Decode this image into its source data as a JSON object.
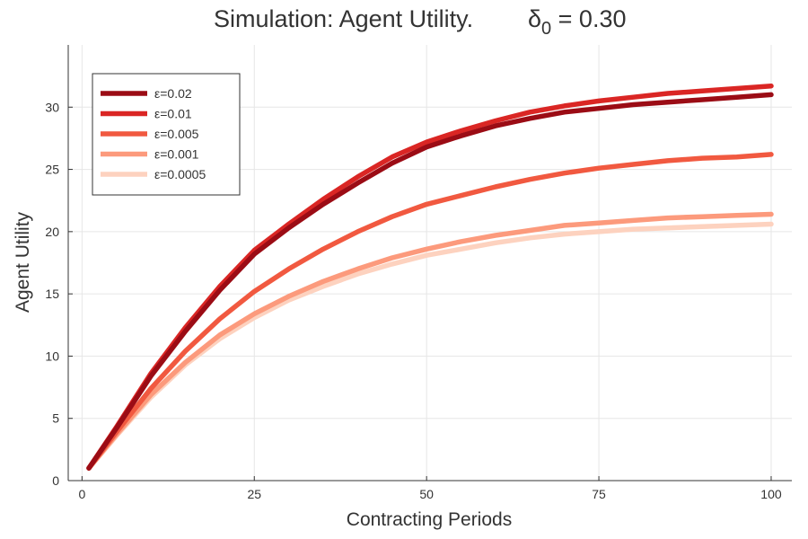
{
  "chart_data": {
    "type": "line",
    "title": "Simulation: Agent Utility.",
    "title_math": {
      "symbol": "δ",
      "subscript": "0",
      "rest": " = 0.30"
    },
    "xlabel": "Contracting Periods",
    "ylabel": "Agent Utility",
    "xlim": [
      -2,
      103
    ],
    "ylim": [
      0,
      35
    ],
    "xticks": [
      0,
      25,
      50,
      75,
      100
    ],
    "yticks": [
      0,
      5,
      10,
      15,
      20,
      25,
      30
    ],
    "grid": true,
    "legend_position": "top-left",
    "x": [
      1,
      5,
      10,
      15,
      20,
      25,
      30,
      35,
      40,
      45,
      50,
      55,
      60,
      65,
      70,
      75,
      80,
      85,
      90,
      95,
      100
    ],
    "series": [
      {
        "name": "ε=0.02",
        "color": "#9b0c15",
        "values": [
          1.0,
          4.2,
          8.4,
          12.0,
          15.3,
          18.2,
          20.3,
          22.2,
          23.9,
          25.5,
          26.8,
          27.7,
          28.5,
          29.1,
          29.6,
          29.9,
          30.2,
          30.4,
          30.6,
          30.8,
          31.0
        ]
      },
      {
        "name": "ε=0.01",
        "color": "#da2624",
        "values": [
          1.0,
          4.3,
          8.6,
          12.3,
          15.6,
          18.5,
          20.6,
          22.6,
          24.4,
          26.0,
          27.2,
          28.1,
          28.9,
          29.6,
          30.1,
          30.5,
          30.8,
          31.1,
          31.3,
          31.5,
          31.7
        ]
      },
      {
        "name": "ε=0.005",
        "color": "#f15940",
        "values": [
          1.0,
          3.9,
          7.4,
          10.4,
          13.0,
          15.2,
          17.0,
          18.6,
          20.0,
          21.2,
          22.2,
          22.9,
          23.6,
          24.2,
          24.7,
          25.1,
          25.4,
          25.7,
          25.9,
          26.0,
          26.2
        ]
      },
      {
        "name": "ε=0.001",
        "color": "#fc9a7c",
        "values": [
          1.0,
          3.7,
          6.9,
          9.5,
          11.7,
          13.4,
          14.8,
          16.0,
          17.0,
          17.9,
          18.6,
          19.2,
          19.7,
          20.1,
          20.5,
          20.7,
          20.9,
          21.1,
          21.2,
          21.3,
          21.4
        ]
      },
      {
        "name": "ε=0.0005",
        "color": "#fdd2bf",
        "values": [
          1.0,
          3.6,
          6.7,
          9.3,
          11.4,
          13.1,
          14.5,
          15.6,
          16.6,
          17.4,
          18.1,
          18.6,
          19.1,
          19.5,
          19.8,
          20.0,
          20.2,
          20.3,
          20.4,
          20.5,
          20.6
        ]
      }
    ]
  }
}
